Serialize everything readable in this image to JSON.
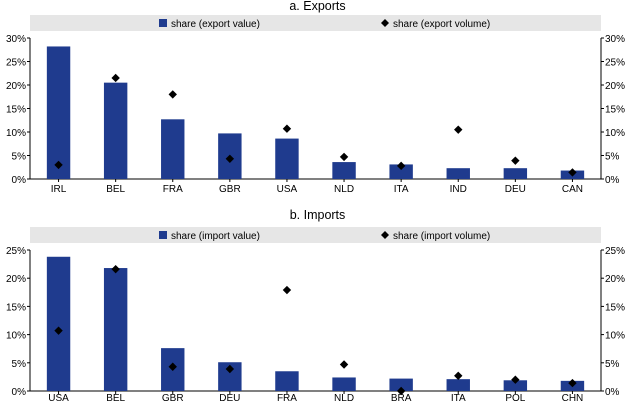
{
  "chart_data": [
    {
      "type": "bar",
      "title": "a. Exports",
      "categories": [
        "IRL",
        "BEL",
        "FRA",
        "GBR",
        "USA",
        "NLD",
        "ITA",
        "IND",
        "DEU",
        "CAN"
      ],
      "series": [
        {
          "name": "share (export value)",
          "kind": "bar",
          "color": "#1f3b8e",
          "values": [
            28.2,
            20.5,
            12.7,
            9.7,
            8.6,
            3.6,
            3.1,
            2.3,
            2.3,
            1.8
          ]
        },
        {
          "name": "share (export volume)",
          "kind": "marker",
          "color": "#000000",
          "values": [
            3.0,
            21.5,
            18.0,
            4.3,
            10.7,
            4.7,
            2.8,
            10.5,
            3.9,
            1.4
          ]
        }
      ],
      "ylim": [
        0,
        30
      ],
      "yticks": [
        "0%",
        "5%",
        "10%",
        "15%",
        "20%",
        "25%",
        "30%"
      ],
      "xlabel": "",
      "ylabel": "",
      "legend_position": "top",
      "grid": false
    },
    {
      "type": "bar",
      "title": "b. Imports",
      "categories": [
        "USA",
        "BEL",
        "GBR",
        "DEU",
        "FRA",
        "NLD",
        "BRA",
        "ITA",
        "POL",
        "CHN"
      ],
      "series": [
        {
          "name": "share (import value)",
          "kind": "bar",
          "color": "#1f3b8e",
          "values": [
            23.8,
            21.8,
            7.6,
            5.1,
            3.5,
            2.4,
            2.2,
            2.1,
            1.9,
            1.8
          ]
        },
        {
          "name": "share (import volume)",
          "kind": "marker",
          "color": "#000000",
          "values": [
            10.7,
            21.6,
            4.3,
            3.9,
            17.9,
            4.7,
            0.0,
            2.7,
            2.0,
            1.4
          ]
        }
      ],
      "ylim": [
        0,
        25
      ],
      "yticks": [
        "0%",
        "5%",
        "10%",
        "15%",
        "20%",
        "25%"
      ],
      "xlabel": "",
      "ylabel": "",
      "legend_position": "top",
      "grid": false
    }
  ]
}
